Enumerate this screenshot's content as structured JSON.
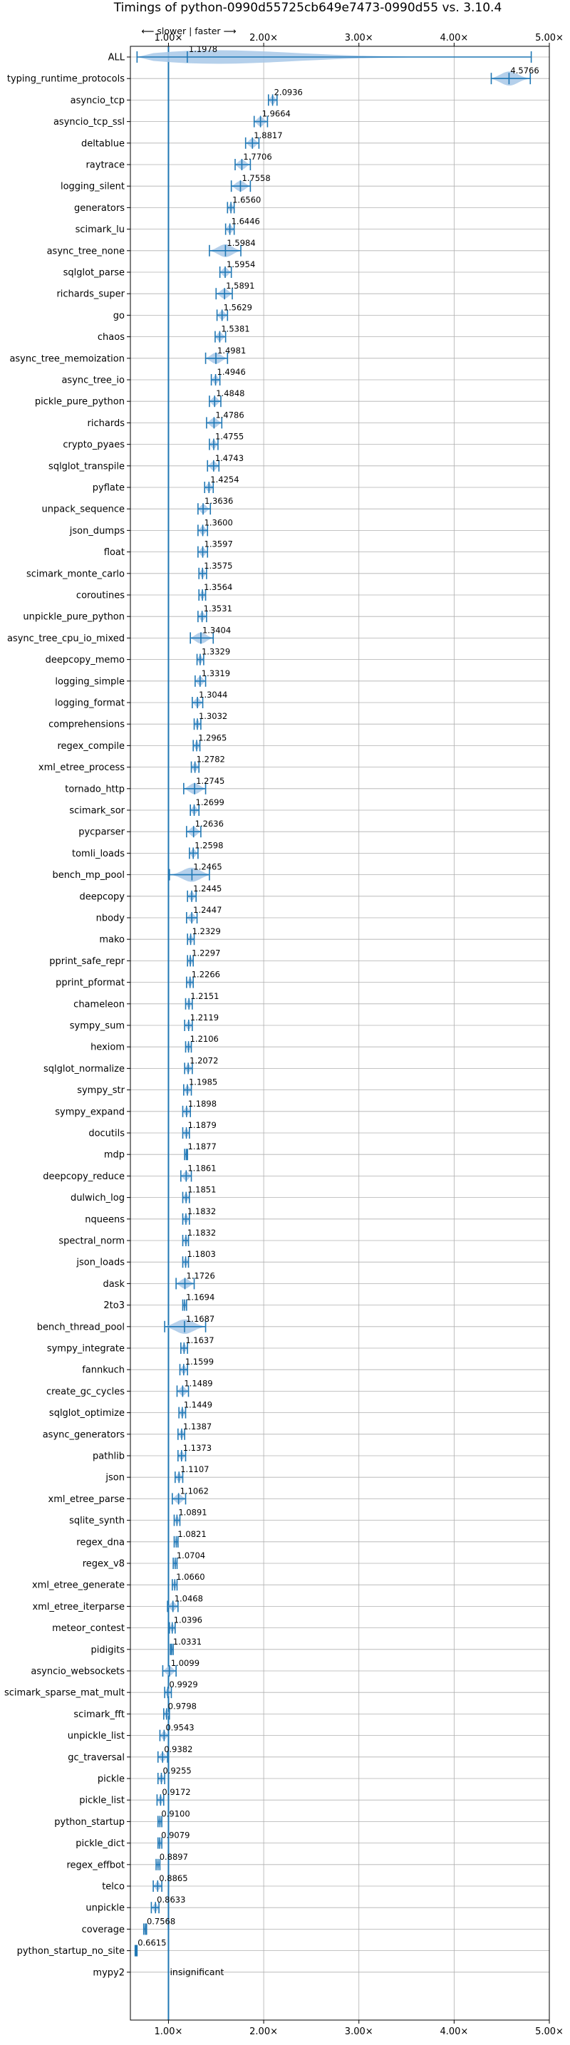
{
  "chart_data": {
    "type": "violin",
    "title": "Timings of python-0990d55725cb649e7473-0990d55 vs. 3.10.4",
    "direction_hint": "⟵ slower  |  faster ⟶",
    "x_ticks": [
      {
        "value": 1,
        "label": "1.00×"
      },
      {
        "value": 2,
        "label": "2.00×"
      },
      {
        "value": 3,
        "label": "3.00×"
      },
      {
        "value": 4,
        "label": "4.00×"
      },
      {
        "value": 5,
        "label": "5.00×"
      }
    ],
    "xlim": [
      0.6,
      5.0
    ],
    "reference_value": 1.0,
    "insignificant_label": "insignificant",
    "benchmarks": [
      {
        "name": "ALL",
        "value": 1.1978,
        "label": "1.1978",
        "lo": 0.67,
        "hi": 4.81
      },
      {
        "name": "typing_runtime_protocols",
        "value": 4.5766,
        "label": "4.5766",
        "lo": 4.39,
        "hi": 4.8
      },
      {
        "name": "asyncio_tcp",
        "value": 2.0936,
        "label": "2.0936",
        "lo": 2.05,
        "hi": 2.14
      },
      {
        "name": "asyncio_tcp_ssl",
        "value": 1.9664,
        "label": "1.9664",
        "lo": 1.9,
        "hi": 2.04
      },
      {
        "name": "deltablue",
        "value": 1.8817,
        "label": "1.8817",
        "lo": 1.81,
        "hi": 1.95
      },
      {
        "name": "raytrace",
        "value": 1.7706,
        "label": "1.7706",
        "lo": 1.7,
        "hi": 1.86
      },
      {
        "name": "logging_silent",
        "value": 1.7558,
        "label": "1.7558",
        "lo": 1.66,
        "hi": 1.86
      },
      {
        "name": "generators",
        "value": 1.656,
        "label": "1.6560",
        "lo": 1.62,
        "hi": 1.69
      },
      {
        "name": "scimark_lu",
        "value": 1.6446,
        "label": "1.6446",
        "lo": 1.6,
        "hi": 1.69
      },
      {
        "name": "async_tree_none",
        "value": 1.5984,
        "label": "1.5984",
        "lo": 1.43,
        "hi": 1.76
      },
      {
        "name": "sqlglot_parse",
        "value": 1.5954,
        "label": "1.5954",
        "lo": 1.54,
        "hi": 1.66
      },
      {
        "name": "richards_super",
        "value": 1.5891,
        "label": "1.5891",
        "lo": 1.5,
        "hi": 1.67
      },
      {
        "name": "go",
        "value": 1.5629,
        "label": "1.5629",
        "lo": 1.51,
        "hi": 1.62
      },
      {
        "name": "chaos",
        "value": 1.5381,
        "label": "1.5381",
        "lo": 1.49,
        "hi": 1.6
      },
      {
        "name": "async_tree_memoization",
        "value": 1.4981,
        "label": "1.4981",
        "lo": 1.39,
        "hi": 1.62
      },
      {
        "name": "async_tree_io",
        "value": 1.4946,
        "label": "1.4946",
        "lo": 1.45,
        "hi": 1.54
      },
      {
        "name": "pickle_pure_python",
        "value": 1.4848,
        "label": "1.4848",
        "lo": 1.43,
        "hi": 1.55
      },
      {
        "name": "richards",
        "value": 1.4786,
        "label": "1.4786",
        "lo": 1.4,
        "hi": 1.56
      },
      {
        "name": "crypto_pyaes",
        "value": 1.4755,
        "label": "1.4755",
        "lo": 1.43,
        "hi": 1.52
      },
      {
        "name": "sqlglot_transpile",
        "value": 1.4743,
        "label": "1.4743",
        "lo": 1.41,
        "hi": 1.53
      },
      {
        "name": "pyflate",
        "value": 1.4254,
        "label": "1.4254",
        "lo": 1.38,
        "hi": 1.47
      },
      {
        "name": "unpack_sequence",
        "value": 1.3636,
        "label": "1.3636",
        "lo": 1.31,
        "hi": 1.44
      },
      {
        "name": "json_dumps",
        "value": 1.36,
        "label": "1.3600",
        "lo": 1.31,
        "hi": 1.41
      },
      {
        "name": "float",
        "value": 1.3597,
        "label": "1.3597",
        "lo": 1.31,
        "hi": 1.41
      },
      {
        "name": "scimark_monte_carlo",
        "value": 1.3575,
        "label": "1.3575",
        "lo": 1.32,
        "hi": 1.4
      },
      {
        "name": "coroutines",
        "value": 1.3564,
        "label": "1.3564",
        "lo": 1.32,
        "hi": 1.39
      },
      {
        "name": "unpickle_pure_python",
        "value": 1.3531,
        "label": "1.3531",
        "lo": 1.31,
        "hi": 1.4
      },
      {
        "name": "async_tree_cpu_io_mixed",
        "value": 1.3404,
        "label": "1.3404",
        "lo": 1.23,
        "hi": 1.47
      },
      {
        "name": "deepcopy_memo",
        "value": 1.3329,
        "label": "1.3329",
        "lo": 1.3,
        "hi": 1.37
      },
      {
        "name": "logging_simple",
        "value": 1.3319,
        "label": "1.3319",
        "lo": 1.28,
        "hi": 1.39
      },
      {
        "name": "logging_format",
        "value": 1.3044,
        "label": "1.3044",
        "lo": 1.25,
        "hi": 1.36
      },
      {
        "name": "comprehensions",
        "value": 1.3032,
        "label": "1.3032",
        "lo": 1.27,
        "hi": 1.34
      },
      {
        "name": "regex_compile",
        "value": 1.2965,
        "label": "1.2965",
        "lo": 1.26,
        "hi": 1.33
      },
      {
        "name": "xml_etree_process",
        "value": 1.2782,
        "label": "1.2782",
        "lo": 1.24,
        "hi": 1.32
      },
      {
        "name": "tornado_http",
        "value": 1.2745,
        "label": "1.2745",
        "lo": 1.16,
        "hi": 1.39
      },
      {
        "name": "scimark_sor",
        "value": 1.2699,
        "label": "1.2699",
        "lo": 1.23,
        "hi": 1.32
      },
      {
        "name": "pycparser",
        "value": 1.2636,
        "label": "1.2636",
        "lo": 1.19,
        "hi": 1.34
      },
      {
        "name": "tomli_loads",
        "value": 1.2598,
        "label": "1.2598",
        "lo": 1.22,
        "hi": 1.31
      },
      {
        "name": "bench_mp_pool",
        "value": 1.2465,
        "label": "1.2465",
        "lo": 1.01,
        "hi": 1.43
      },
      {
        "name": "deepcopy",
        "value": 1.2445,
        "label": "1.2445",
        "lo": 1.2,
        "hi": 1.29
      },
      {
        "name": "nbody",
        "value": 1.2447,
        "label": "1.2447",
        "lo": 1.19,
        "hi": 1.3
      },
      {
        "name": "mako",
        "value": 1.2329,
        "label": "1.2329",
        "lo": 1.2,
        "hi": 1.27
      },
      {
        "name": "pprint_safe_repr",
        "value": 1.2297,
        "label": "1.2297",
        "lo": 1.2,
        "hi": 1.26
      },
      {
        "name": "pprint_pformat",
        "value": 1.2266,
        "label": "1.2266",
        "lo": 1.19,
        "hi": 1.26
      },
      {
        "name": "chameleon",
        "value": 1.2151,
        "label": "1.2151",
        "lo": 1.18,
        "hi": 1.25
      },
      {
        "name": "sympy_sum",
        "value": 1.2119,
        "label": "1.2119",
        "lo": 1.17,
        "hi": 1.25
      },
      {
        "name": "hexiom",
        "value": 1.2106,
        "label": "1.2106",
        "lo": 1.18,
        "hi": 1.24
      },
      {
        "name": "sqlglot_normalize",
        "value": 1.2072,
        "label": "1.2072",
        "lo": 1.17,
        "hi": 1.25
      },
      {
        "name": "sympy_str",
        "value": 1.1985,
        "label": "1.1985",
        "lo": 1.16,
        "hi": 1.24
      },
      {
        "name": "sympy_expand",
        "value": 1.1898,
        "label": "1.1898",
        "lo": 1.15,
        "hi": 1.23
      },
      {
        "name": "docutils",
        "value": 1.1879,
        "label": "1.1879",
        "lo": 1.15,
        "hi": 1.22
      },
      {
        "name": "mdp",
        "value": 1.1877,
        "label": "1.1877",
        "lo": 1.17,
        "hi": 1.2
      },
      {
        "name": "deepcopy_reduce",
        "value": 1.1861,
        "label": "1.1861",
        "lo": 1.13,
        "hi": 1.24
      },
      {
        "name": "dulwich_log",
        "value": 1.1851,
        "label": "1.1851",
        "lo": 1.15,
        "hi": 1.22
      },
      {
        "name": "nqueens",
        "value": 1.1832,
        "label": "1.1832",
        "lo": 1.15,
        "hi": 1.22
      },
      {
        "name": "spectral_norm",
        "value": 1.1832,
        "label": "1.1832",
        "lo": 1.15,
        "hi": 1.21
      },
      {
        "name": "json_loads",
        "value": 1.1803,
        "label": "1.1803",
        "lo": 1.15,
        "hi": 1.21
      },
      {
        "name": "dask",
        "value": 1.1726,
        "label": "1.1726",
        "lo": 1.08,
        "hi": 1.27
      },
      {
        "name": "2to3",
        "value": 1.1694,
        "label": "1.1694",
        "lo": 1.15,
        "hi": 1.19
      },
      {
        "name": "bench_thread_pool",
        "value": 1.1687,
        "label": "1.1687",
        "lo": 0.96,
        "hi": 1.39
      },
      {
        "name": "sympy_integrate",
        "value": 1.1637,
        "label": "1.1637",
        "lo": 1.13,
        "hi": 1.2
      },
      {
        "name": "fannkuch",
        "value": 1.1599,
        "label": "1.1599",
        "lo": 1.12,
        "hi": 1.2
      },
      {
        "name": "create_gc_cycles",
        "value": 1.1489,
        "label": "1.1489",
        "lo": 1.09,
        "hi": 1.21
      },
      {
        "name": "sqlglot_optimize",
        "value": 1.1449,
        "label": "1.1449",
        "lo": 1.11,
        "hi": 1.18
      },
      {
        "name": "async_generators",
        "value": 1.1387,
        "label": "1.1387",
        "lo": 1.1,
        "hi": 1.17
      },
      {
        "name": "pathlib",
        "value": 1.1373,
        "label": "1.1373",
        "lo": 1.1,
        "hi": 1.18
      },
      {
        "name": "json",
        "value": 1.1107,
        "label": "1.1107",
        "lo": 1.07,
        "hi": 1.15
      },
      {
        "name": "xml_etree_parse",
        "value": 1.1062,
        "label": "1.1062",
        "lo": 1.04,
        "hi": 1.18
      },
      {
        "name": "sqlite_synth",
        "value": 1.0891,
        "label": "1.0891",
        "lo": 1.06,
        "hi": 1.12
      },
      {
        "name": "regex_dna",
        "value": 1.0821,
        "label": "1.0821",
        "lo": 1.06,
        "hi": 1.1
      },
      {
        "name": "regex_v8",
        "value": 1.0704,
        "label": "1.0704",
        "lo": 1.05,
        "hi": 1.09
      },
      {
        "name": "xml_etree_generate",
        "value": 1.066,
        "label": "1.0660",
        "lo": 1.04,
        "hi": 1.09
      },
      {
        "name": "xml_etree_iterparse",
        "value": 1.0468,
        "label": "1.0468",
        "lo": 0.99,
        "hi": 1.1
      },
      {
        "name": "meteor_contest",
        "value": 1.0396,
        "label": "1.0396",
        "lo": 1.01,
        "hi": 1.07
      },
      {
        "name": "pidigits",
        "value": 1.0331,
        "label": "1.0331",
        "lo": 1.02,
        "hi": 1.05
      },
      {
        "name": "asyncio_websockets",
        "value": 1.0099,
        "label": "1.0099",
        "lo": 0.94,
        "hi": 1.08
      },
      {
        "name": "scimark_sparse_mat_mult",
        "value": 0.9929,
        "label": "0.9929",
        "lo": 0.96,
        "hi": 1.03
      },
      {
        "name": "scimark_fft",
        "value": 0.9798,
        "label": "0.9798",
        "lo": 0.95,
        "hi": 1.01
      },
      {
        "name": "unpickle_list",
        "value": 0.9543,
        "label": "0.9543",
        "lo": 0.91,
        "hi": 1.0
      },
      {
        "name": "gc_traversal",
        "value": 0.9382,
        "label": "0.9382",
        "lo": 0.89,
        "hi": 0.99
      },
      {
        "name": "pickle",
        "value": 0.9255,
        "label": "0.9255",
        "lo": 0.89,
        "hi": 0.96
      },
      {
        "name": "pickle_list",
        "value": 0.9172,
        "label": "0.9172",
        "lo": 0.88,
        "hi": 0.95
      },
      {
        "name": "python_startup",
        "value": 0.91,
        "label": "0.9100",
        "lo": 0.89,
        "hi": 0.93
      },
      {
        "name": "pickle_dict",
        "value": 0.9079,
        "label": "0.9079",
        "lo": 0.89,
        "hi": 0.93
      },
      {
        "name": "regex_effbot",
        "value": 0.8897,
        "label": "0.8897",
        "lo": 0.87,
        "hi": 0.91
      },
      {
        "name": "telco",
        "value": 0.8865,
        "label": "0.8865",
        "lo": 0.84,
        "hi": 0.93
      },
      {
        "name": "unpickle",
        "value": 0.8633,
        "label": "0.8633",
        "lo": 0.82,
        "hi": 0.9
      },
      {
        "name": "coverage",
        "value": 0.7568,
        "label": "0.7568",
        "lo": 0.74,
        "hi": 0.77
      },
      {
        "name": "python_startup_no_site",
        "value": 0.6615,
        "label": "0.6615",
        "lo": 0.65,
        "hi": 0.67
      },
      {
        "name": "mypy2",
        "value": null,
        "label": "insignificant",
        "lo": null,
        "hi": null
      }
    ],
    "colors": {
      "violin": "#a8c8e8",
      "line": "#1f77b4",
      "median_line": "#e8a0a0",
      "grid": "#b0b0b0"
    }
  }
}
